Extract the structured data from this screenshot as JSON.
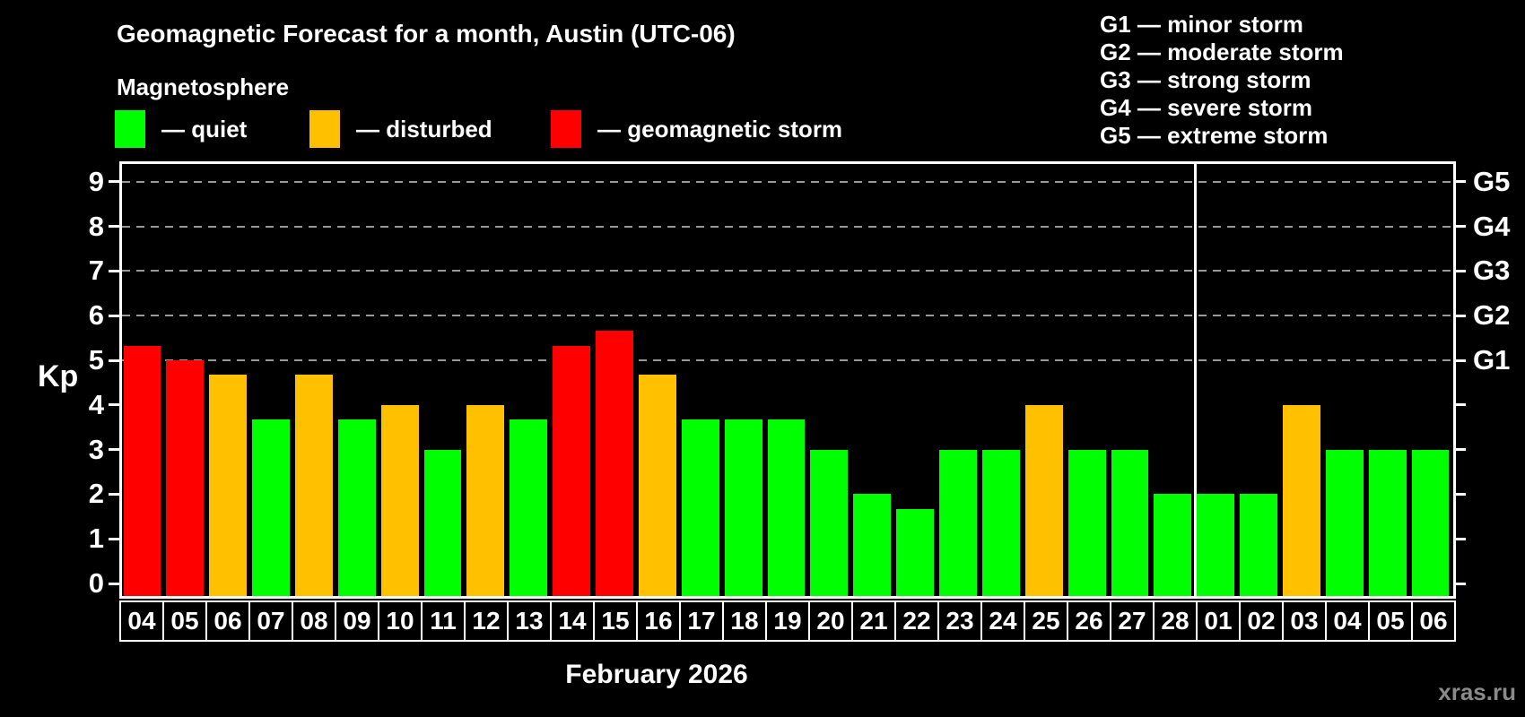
{
  "title": "Geomagnetic Forecast for a month, Austin (UTC-06)",
  "subtitle": "Magnetosphere",
  "legend": {
    "items": [
      {
        "label": "— quiet",
        "color": "#00FF00"
      },
      {
        "label": "— disturbed",
        "color": "#FFC000"
      },
      {
        "label": "— geomagnetic storm",
        "color": "#FF0000"
      }
    ]
  },
  "g_scale": {
    "items": [
      "G1 — minor storm",
      "G2 — moderate storm",
      "G3 — strong storm",
      "G4 — severe storm",
      "G5 — extreme storm"
    ]
  },
  "axis": {
    "y_label": "Kp",
    "kp_ticks": [
      0,
      1,
      2,
      3,
      4,
      5,
      6,
      7,
      8,
      9
    ],
    "right_labels": [
      {
        "kp": 5,
        "label": "G1"
      },
      {
        "kp": 6,
        "label": "G2"
      },
      {
        "kp": 7,
        "label": "G3"
      },
      {
        "kp": 8,
        "label": "G4"
      },
      {
        "kp": 9,
        "label": "G5"
      }
    ]
  },
  "xaxis_title": "February 2026",
  "watermark": "xras.ru",
  "chart_data": {
    "type": "bar",
    "title": "Geomagnetic Forecast for a month, Austin (UTC-06)",
    "ylabel": "Kp",
    "xlabel": "February 2026",
    "ylim": [
      0,
      9.5
    ],
    "grid_y": [
      5,
      6,
      7,
      8,
      9
    ],
    "legend_position": "top-left",
    "categories": [
      "04",
      "05",
      "06",
      "07",
      "08",
      "09",
      "10",
      "11",
      "12",
      "13",
      "14",
      "15",
      "16",
      "17",
      "18",
      "19",
      "20",
      "21",
      "22",
      "23",
      "24",
      "25",
      "26",
      "27",
      "28",
      "01",
      "02",
      "03",
      "04",
      "05",
      "06"
    ],
    "values": [
      5.33,
      5.0,
      4.67,
      3.67,
      4.67,
      3.67,
      4.0,
      3.0,
      4.0,
      3.67,
      5.33,
      5.67,
      4.67,
      3.67,
      3.67,
      3.67,
      3.0,
      2.0,
      1.67,
      3.0,
      3.0,
      4.0,
      3.0,
      3.0,
      2.0,
      2.0,
      2.0,
      4.0,
      3.0,
      3.0,
      3.0
    ],
    "month_separator_after_index": 24,
    "color_rules": [
      {
        "min": 5,
        "color": "#FF0000",
        "meaning": "geomagnetic storm"
      },
      {
        "min": 4,
        "color": "#FFC000",
        "meaning": "disturbed"
      },
      {
        "min": 0,
        "color": "#00FF00",
        "meaning": "quiet"
      }
    ]
  }
}
